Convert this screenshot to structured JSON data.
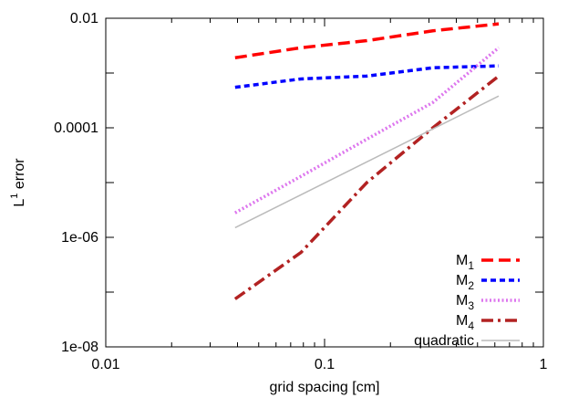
{
  "chart_data": {
    "type": "line",
    "xscale": "log",
    "yscale": "log",
    "xlabel": "grid spacing [cm]",
    "ylabel": {
      "base": "L",
      "sup": "1",
      "rest": " error"
    },
    "xlim": [
      0.01,
      1
    ],
    "ylim": [
      1e-08,
      0.01
    ],
    "xticks": [
      {
        "value": 0.01,
        "label": "0.01"
      },
      {
        "value": 0.1,
        "label": "0.1"
      },
      {
        "value": 1,
        "label": "1"
      }
    ],
    "yticks": [
      {
        "value": 1e-08,
        "label": "1e-08"
      },
      {
        "value": 1e-06,
        "label": "1e-06"
      },
      {
        "value": 0.0001,
        "label": "0.0001"
      },
      {
        "value": 0.01,
        "label": "0.01"
      }
    ],
    "grid": false,
    "legend_position": "bottom-right",
    "series": [
      {
        "name": "M",
        "sub": "1",
        "color": "#ff0000",
        "dash": "long-dash",
        "x": [
          0.039,
          0.078,
          0.156,
          0.3125,
          0.625
        ],
        "y": [
          0.0019,
          0.0029,
          0.0039,
          0.0059,
          0.0079
        ]
      },
      {
        "name": "M",
        "sub": "2",
        "color": "#0000ff",
        "dash": "short-dash",
        "x": [
          0.039,
          0.078,
          0.156,
          0.3125,
          0.625
        ],
        "y": [
          0.00055,
          0.00078,
          0.00088,
          0.00125,
          0.00135
        ]
      },
      {
        "name": "M",
        "sub": "3",
        "color": "#dd77ee",
        "dash": "dotted",
        "x": [
          0.039,
          0.078,
          0.156,
          0.3125,
          0.625
        ],
        "y": [
          2.8e-06,
          1.3e-05,
          6.2e-05,
          0.00029,
          0.0029
        ]
      },
      {
        "name": "M",
        "sub": "4",
        "color": "#b22222",
        "dash": "dash-dot",
        "x": [
          0.039,
          0.078,
          0.156,
          0.3125,
          0.625
        ],
        "y": [
          7.5e-08,
          5.3e-07,
          1e-05,
          0.0001,
          0.00088
        ]
      },
      {
        "name": "quadratic",
        "color": "#bbbbbb",
        "dash": "solid",
        "x": [
          0.039,
          0.625
        ],
        "y": [
          1.5e-06,
          0.00038
        ]
      }
    ]
  }
}
